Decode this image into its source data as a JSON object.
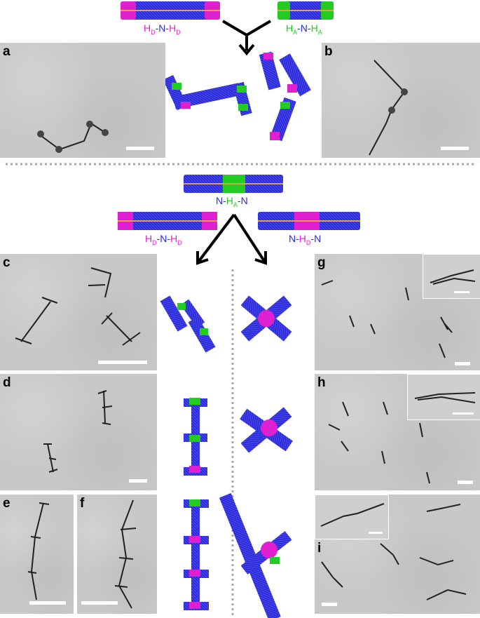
{
  "panels": {
    "a": "a",
    "b": "b",
    "c": "c",
    "d": "d",
    "e": "e",
    "f": "f",
    "g": "g",
    "h": "h",
    "i": "i"
  },
  "top_labels": {
    "left": {
      "p1": "H",
      "s1": "D",
      "p2": "-N-",
      "p3": "H",
      "s3": "D"
    },
    "right": {
      "p1": "H",
      "s1": "A",
      "p2": "-N-",
      "p3": "H",
      "s3": "A"
    }
  },
  "mid_label": {
    "p1": "N-",
    "p2": "H",
    "s2": "A",
    "p3": "-N"
  },
  "lower_left_label": {
    "p1": "H",
    "s1": "D",
    "p2": "-N-",
    "p3": "H",
    "s3": "D"
  },
  "lower_right_label": {
    "p1": "N-",
    "p2": "H",
    "s2": "D",
    "p3": "-N"
  },
  "colors": {
    "donor": "#e020d0",
    "acceptor": "#22cc22",
    "corona": "#2a2ad0",
    "core": "#e8a040",
    "tem_background": "#c8c8c8",
    "divider": "#aaaaaa"
  }
}
